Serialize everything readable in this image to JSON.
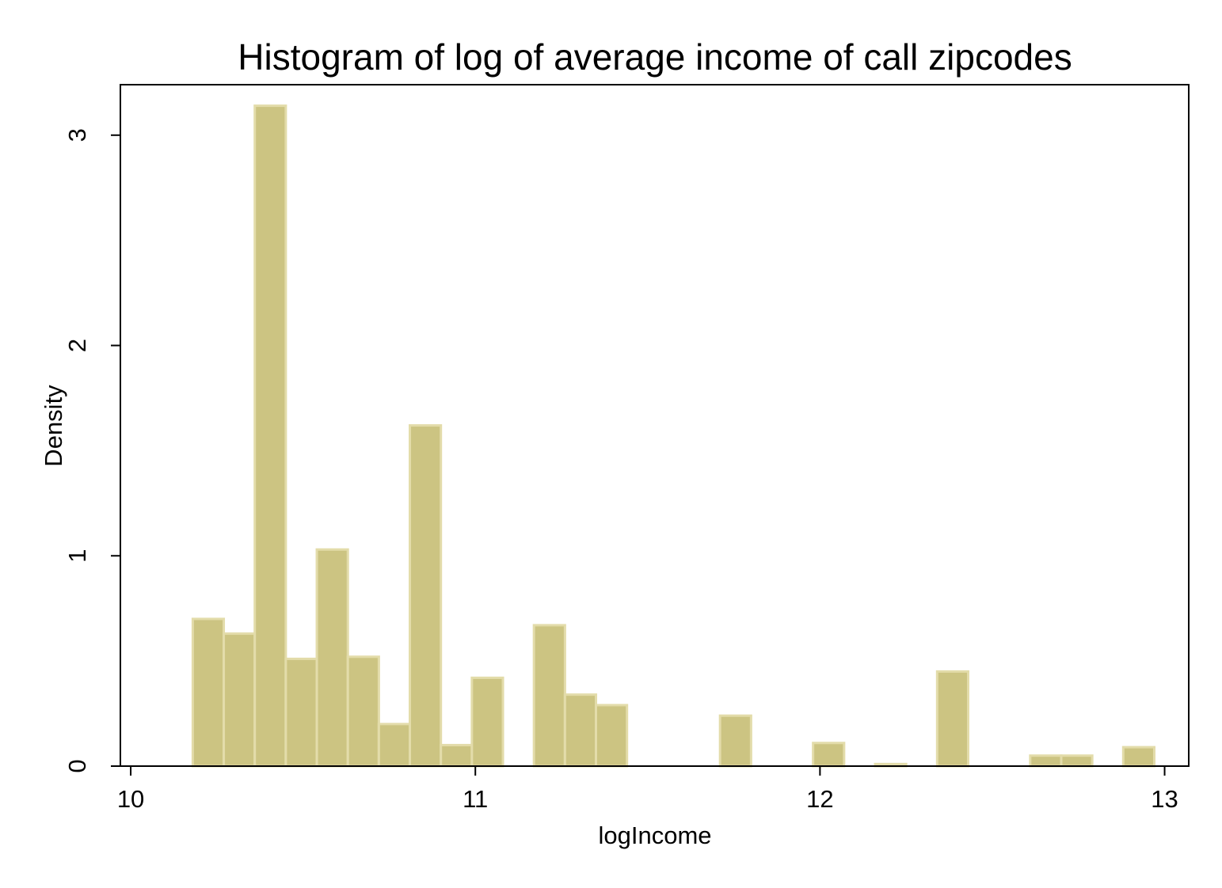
{
  "chart_data": {
    "type": "bar",
    "title": "Histogram of log of average income of call zipcodes",
    "xlabel": "logIncome",
    "ylabel": "Density",
    "xlim": [
      9.97,
      13.07
    ],
    "ylim": [
      0,
      3.24
    ],
    "x_ticks": [
      10,
      11,
      12,
      13
    ],
    "y_ticks": [
      0,
      1,
      2,
      3
    ],
    "bin_width": 0.09,
    "bins": [
      {
        "start": 10.18,
        "end": 10.27,
        "density": 0.7
      },
      {
        "start": 10.27,
        "end": 10.36,
        "density": 0.63
      },
      {
        "start": 10.36,
        "end": 10.45,
        "density": 3.14
      },
      {
        "start": 10.45,
        "end": 10.54,
        "density": 0.51
      },
      {
        "start": 10.54,
        "end": 10.63,
        "density": 1.03
      },
      {
        "start": 10.63,
        "end": 10.72,
        "density": 0.52
      },
      {
        "start": 10.72,
        "end": 10.81,
        "density": 0.2
      },
      {
        "start": 10.81,
        "end": 10.9,
        "density": 1.62
      },
      {
        "start": 10.9,
        "end": 10.99,
        "density": 0.1
      },
      {
        "start": 10.99,
        "end": 11.08,
        "density": 0.42
      },
      {
        "start": 11.08,
        "end": 11.17,
        "density": 0.0
      },
      {
        "start": 11.17,
        "end": 11.26,
        "density": 0.67
      },
      {
        "start": 11.26,
        "end": 11.35,
        "density": 0.34
      },
      {
        "start": 11.35,
        "end": 11.44,
        "density": 0.29
      },
      {
        "start": 11.71,
        "end": 11.8,
        "density": 0.24
      },
      {
        "start": 11.98,
        "end": 12.07,
        "density": 0.11
      },
      {
        "start": 12.16,
        "end": 12.25,
        "density": 0.01
      },
      {
        "start": 12.34,
        "end": 12.43,
        "density": 0.45
      },
      {
        "start": 12.61,
        "end": 12.7,
        "density": 0.05
      },
      {
        "start": 12.7,
        "end": 12.79,
        "density": 0.05
      },
      {
        "start": 12.88,
        "end": 12.97,
        "density": 0.09
      }
    ],
    "grid": false,
    "legend": "none",
    "bar_color": "#ccc482"
  }
}
